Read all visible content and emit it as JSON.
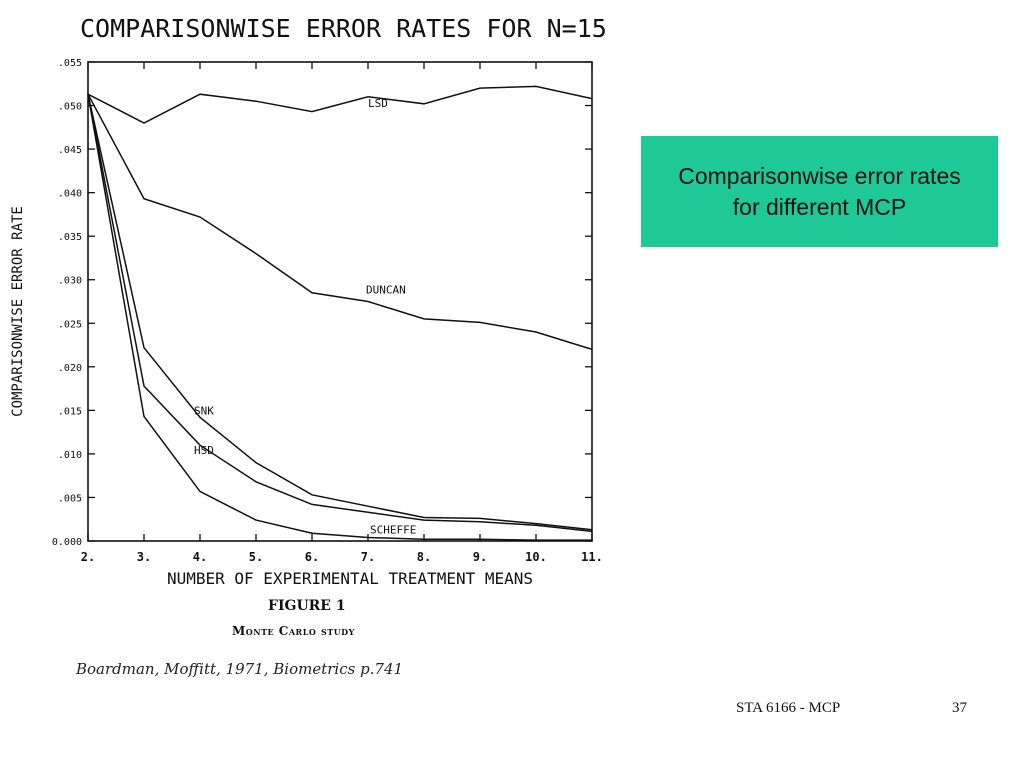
{
  "slide": {
    "callout_text": "Comparisonwise error rates for different MCP",
    "footer_course": "STA 6166 - MCP",
    "footer_page": "37",
    "callout_color": "#1ec997"
  },
  "figure": {
    "label": "FIGURE 1",
    "caption": "Monte Carlo study",
    "citation": "Boardman, Moffitt, 1971, Biometrics p.741"
  },
  "chart_data": {
    "type": "line",
    "title": "COMPARISONWISE ERROR RATES FOR N=15",
    "xlabel": "NUMBER OF EXPERIMENTAL TREATMENT MEANS",
    "ylabel": "COMPARISONWISE ERROR RATE",
    "x": [
      2,
      3,
      4,
      5,
      6,
      7,
      8,
      9,
      10,
      11
    ],
    "x_tick_labels": [
      "2.",
      "3.",
      "4.",
      "5.",
      "6.",
      "7.",
      "8.",
      "9.",
      "10.",
      "11."
    ],
    "y_ticks": [
      0,
      0.005,
      0.01,
      0.015,
      0.02,
      0.025,
      0.03,
      0.035,
      0.04,
      0.045,
      0.05,
      0.055
    ],
    "y_tick_labels": [
      "0.000",
      ".005",
      ".010",
      ".015",
      ".020",
      ".025",
      ".030",
      ".035",
      ".040",
      ".045",
      ".050",
      ".055"
    ],
    "xlim": [
      2,
      11
    ],
    "ylim": [
      0,
      0.055
    ],
    "grid": false,
    "series": [
      {
        "name": "LSD",
        "values": [
          0.0513,
          0.048,
          0.0513,
          0.0505,
          0.0493,
          0.051,
          0.0502,
          0.052,
          0.0522,
          0.0508
        ]
      },
      {
        "name": "DUNCAN",
        "values": [
          0.0513,
          0.0393,
          0.0372,
          0.033,
          0.0285,
          0.0275,
          0.0255,
          0.0251,
          0.024,
          0.022
        ]
      },
      {
        "name": "SNK",
        "values": [
          0.0513,
          0.0222,
          0.0142,
          0.009,
          0.0053,
          0.004,
          0.0027,
          0.0026,
          0.002,
          0.0013
        ]
      },
      {
        "name": "HSD",
        "values": [
          0.0513,
          0.0178,
          0.011,
          0.0068,
          0.0042,
          0.0033,
          0.0024,
          0.0022,
          0.0018,
          0.0011
        ]
      },
      {
        "name": "SCHEFFE",
        "values": [
          0.0513,
          0.0143,
          0.0057,
          0.0024,
          0.0009,
          0.0004,
          0.0002,
          0.0002,
          0.0001,
          0.0001
        ]
      }
    ]
  }
}
